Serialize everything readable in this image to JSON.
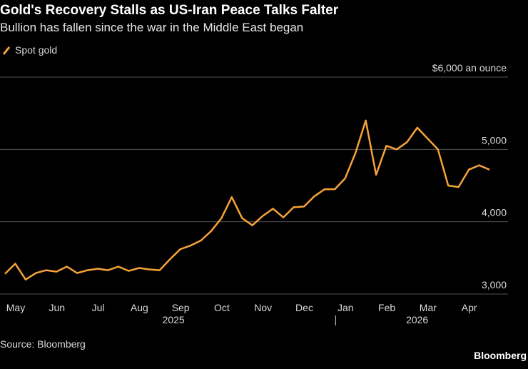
{
  "chart_data": {
    "type": "line",
    "title": "Gold's Recovery Stalls as US-Iran Peace Talks Falter",
    "subtitle": "Bullion has fallen since the war in the Middle East began",
    "source": "Source: Bloomberg",
    "brand": "Bloomberg",
    "categories": [
      "May",
      "May",
      "May",
      "May",
      "Jun",
      "Jun",
      "Jun",
      "Jun",
      "Jul",
      "Jul",
      "Jul",
      "Jul",
      "Aug",
      "Aug",
      "Aug",
      "Aug",
      "Sep",
      "Sep",
      "Sep",
      "Sep",
      "Oct",
      "Oct",
      "Oct",
      "Oct",
      "Nov",
      "Nov",
      "Nov",
      "Nov",
      "Dec",
      "Dec",
      "Dec",
      "Dec",
      "Jan",
      "Jan",
      "Jan",
      "Jan",
      "Feb",
      "Feb",
      "Feb",
      "Feb",
      "Mar",
      "Mar",
      "Mar",
      "Mar",
      "Apr",
      "Apr",
      "Apr",
      "Apr"
    ],
    "years": [
      "2025",
      "2026"
    ],
    "series": [
      {
        "name": "Spot gold",
        "color": "#f7a23a",
        "values": [
          3280,
          3420,
          3200,
          3290,
          3330,
          3310,
          3380,
          3290,
          3330,
          3350,
          3330,
          3380,
          3320,
          3360,
          3340,
          3330,
          3480,
          3620,
          3670,
          3740,
          3870,
          4050,
          4340,
          4050,
          3950,
          4080,
          4180,
          4060,
          4200,
          4210,
          4350,
          4450,
          4450,
          4600,
          4950,
          5400,
          4650,
          5050,
          5000,
          5100,
          5300,
          5150,
          5000,
          4500,
          4480,
          4720,
          4780,
          4720
        ]
      }
    ],
    "ylim": [
      3000,
      6000
    ],
    "yticks": [
      {
        "value": 3000,
        "label": "3,000"
      },
      {
        "value": 4000,
        "label": "4,000"
      },
      {
        "value": 5000,
        "label": "5,000"
      },
      {
        "value": 6000,
        "label": "$6,000 an ounce"
      }
    ],
    "grid": true
  }
}
